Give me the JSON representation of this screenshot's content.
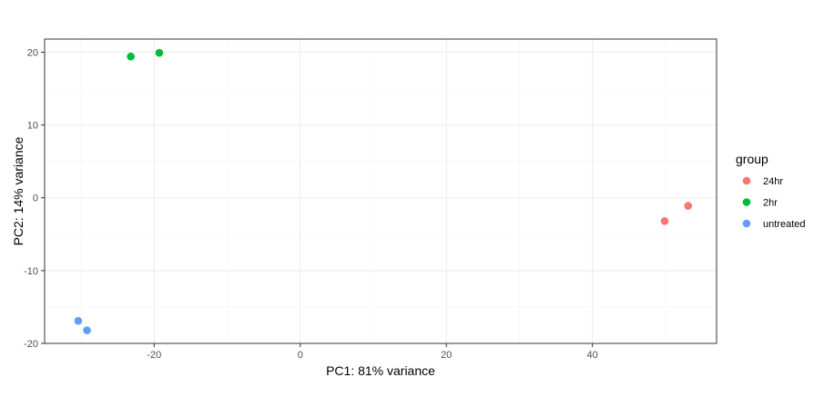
{
  "chart_data": {
    "type": "scatter",
    "xlabel": "PC1: 81% variance",
    "ylabel": "PC2: 14% variance",
    "xlim": [
      -35,
      57
    ],
    "ylim": [
      -20,
      21.8
    ],
    "x_ticks": [
      -20,
      0,
      20,
      40
    ],
    "y_ticks": [
      -20,
      -10,
      0,
      10,
      20
    ],
    "x_tick_labels": [
      "-20",
      "0",
      "20",
      "40"
    ],
    "y_tick_labels": [
      "-20",
      "-10",
      "0",
      "10",
      "20"
    ],
    "grid": true,
    "legend": {
      "title": "group",
      "position": "right"
    },
    "series": [
      {
        "name": "24hr",
        "color": "#F8766D",
        "points": [
          {
            "x": 49.9,
            "y": -3.2
          },
          {
            "x": 53.1,
            "y": -1.1
          }
        ]
      },
      {
        "name": "2hr",
        "color": "#00BA38",
        "points": [
          {
            "x": -23.2,
            "y": 19.4
          },
          {
            "x": -19.3,
            "y": 19.9
          }
        ]
      },
      {
        "name": "untreated",
        "color": "#619CFF",
        "points": [
          {
            "x": -30.4,
            "y": -16.9
          },
          {
            "x": -29.2,
            "y": -18.2
          }
        ]
      }
    ]
  }
}
